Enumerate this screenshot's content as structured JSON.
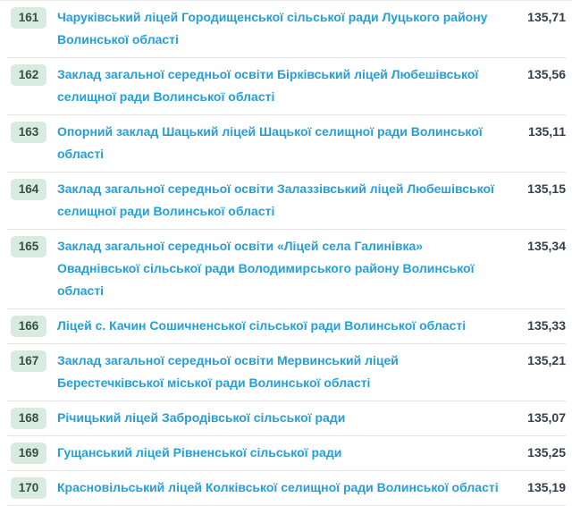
{
  "table": {
    "rows": [
      {
        "rank": "161",
        "name": "Чаруківський ліцей Городищенської сільської ради Луцького району Волинської області",
        "score": "135,71"
      },
      {
        "rank": "162",
        "name": "Заклад загальної середньої освіти Бірківський ліцей Любешівської селищної ради Волинської області",
        "score": "135,56"
      },
      {
        "rank": "163",
        "name": "Опорний заклад Шацький ліцей Шацької селищної ради Волинської області",
        "score": "135,11"
      },
      {
        "rank": "164",
        "name": "Заклад загальної середньої освіти Залаззівський ліцей Любешівської селищної ради Волинської області",
        "score": "135,15"
      },
      {
        "rank": "165",
        "name": "Заклад загальної середньої освіти «Ліцей села Галинівка» Оваднівської сільської ради Володимирського району Волинської області",
        "score": "135,34"
      },
      {
        "rank": "166",
        "name": "Ліцей с. Качин Сошичненської сільської ради Волинської області",
        "score": "135,33"
      },
      {
        "rank": "167",
        "name": "Заклад загальної середньої освіти Мервинський ліцей Берестечківської міської ради Волинської області",
        "score": "135,21"
      },
      {
        "rank": "168",
        "name": "Річицький ліцей Забродівської сільської ради",
        "score": "135,07"
      },
      {
        "rank": "169",
        "name": "Гущанський ліцей Рівненської сільської ради",
        "score": "135,25"
      },
      {
        "rank": "170",
        "name": "Красновільський ліцей Колківської селищної ради Волинської області",
        "score": "135,19"
      }
    ]
  },
  "colors": {
    "background": "#ffffff",
    "link": "#249fd8",
    "badge_bg": "#d8ebe0",
    "badge_text": "#3c4f45",
    "score": "#333f4b",
    "divider": "#e4e4e4",
    "top_divider": "#ececec"
  }
}
